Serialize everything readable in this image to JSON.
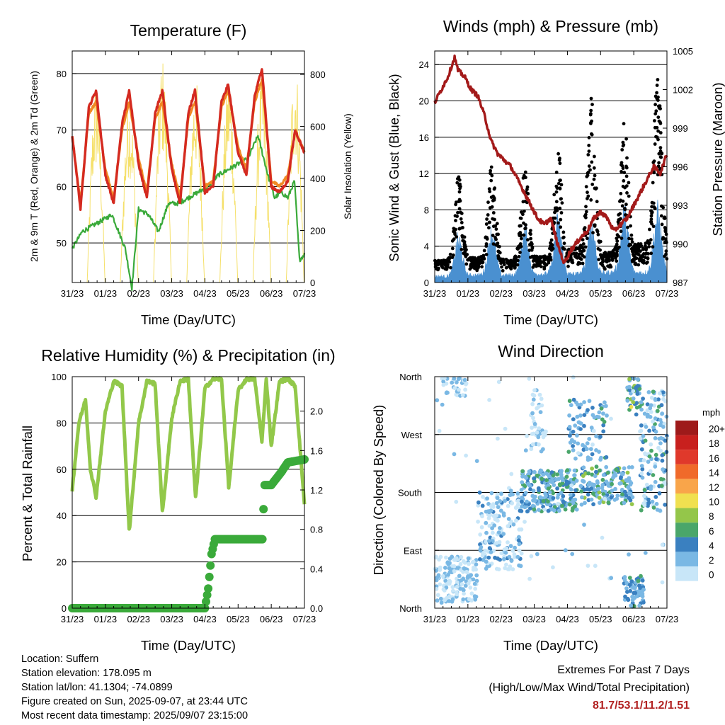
{
  "colors": {
    "temp_red": "#d42a20",
    "temp_orange": "#f08a24",
    "dewpoint_green": "#3aaa3a",
    "insolation_yellow": "#f5e06a",
    "gust_black": "#000000",
    "wind_blue": "#4a90d0",
    "pressure_maroon": "#a31a1a",
    "rh_light_green": "#92c84a",
    "precip_green": "#3aaa3a",
    "extremes_red": "#b22222"
  },
  "info": {
    "location": "Location: Suffern",
    "elevation": "Station elevation: 178.095 m",
    "latlon": "Station lat/lon: 41.1304; -74.0899",
    "created": "Figure created on Sun, 2025-09-07, at 23:44 UTC",
    "latest": "Most recent data timestamp: 2025/09/07 23:15:00"
  },
  "extremes": {
    "title": "Extremes For Past 7 Days",
    "subtitle": "(High/Low/Max Wind/Total Precipitation)",
    "values": "81.7/53.1/11.2/1.51"
  },
  "chart_data": [
    {
      "type": "line",
      "title": "Temperature (F)",
      "xlabel": "Time (Day/UTC)",
      "ylabel": "2m & 9m T (Red, Orange) & 2m Td (Green)",
      "y2label": "Solar Insolation (Yellow)",
      "x_ticks": [
        "31/23",
        "01/23",
        "02/23",
        "03/23",
        "04/23",
        "05/23",
        "06/23",
        "07/23"
      ],
      "y_ticks": [
        50,
        60,
        70,
        80
      ],
      "y2_ticks": [
        0,
        200,
        400,
        600,
        800
      ],
      "ylim": [
        43,
        84
      ],
      "y2lim": [
        0,
        890
      ],
      "grid": true,
      "series": [
        {
          "name": "2m T",
          "color": "red",
          "x": [
            0,
            0.1,
            0.25,
            0.5,
            0.72,
            1.0,
            1.25,
            1.5,
            1.72,
            2.0,
            2.25,
            2.5,
            2.72,
            3.0,
            3.25,
            3.5,
            3.7,
            4.0,
            4.25,
            4.5,
            4.7,
            5.0,
            5.25,
            5.5,
            5.72,
            6.0,
            6.25,
            6.5,
            6.72,
            7.0
          ],
          "y": [
            69,
            64,
            56,
            74,
            77,
            62,
            57,
            71,
            77,
            64,
            58,
            73,
            77,
            63,
            57,
            73,
            77,
            59,
            60,
            75,
            78,
            66,
            62,
            76,
            81,
            60,
            59,
            61,
            70,
            66
          ]
        },
        {
          "name": "9m T",
          "color": "orange",
          "x": [
            0,
            0.25,
            0.5,
            0.72,
            1.0,
            1.25,
            1.5,
            1.72,
            2.0,
            2.25,
            2.5,
            2.72,
            3.0,
            3.25,
            3.5,
            3.7,
            4.0,
            4.25,
            4.5,
            4.7,
            5.0,
            5.25,
            5.5,
            5.72,
            6.0,
            6.25,
            6.5,
            6.72,
            7.0
          ],
          "y": [
            69,
            57,
            73,
            75,
            63,
            58,
            70,
            75,
            65,
            59,
            72,
            75,
            64,
            58,
            72,
            75,
            60,
            61,
            74,
            77,
            67,
            63,
            75,
            79,
            61,
            60,
            62,
            70,
            66
          ]
        },
        {
          "name": "2m Td",
          "color": "green",
          "x": [
            0,
            0.3,
            0.6,
            0.9,
            1.2,
            1.4,
            1.6,
            1.8,
            2.0,
            2.3,
            2.6,
            2.9,
            3.2,
            3.5,
            3.8,
            4.1,
            4.4,
            4.7,
            5.0,
            5.3,
            5.6,
            5.9,
            6.1,
            6.3,
            6.5,
            6.7,
            6.85,
            7.0
          ],
          "y": [
            49,
            52,
            53,
            54,
            55,
            52,
            49,
            42,
            56,
            55,
            52,
            57,
            57,
            58,
            59,
            60,
            62,
            63,
            64,
            65,
            69,
            62,
            58,
            59,
            58,
            61,
            47,
            48
          ]
        },
        {
          "name": "Solar Insolation",
          "axis": "y2",
          "color": "yellow",
          "days": [
            0,
            1,
            2,
            3,
            4,
            5,
            6
          ],
          "peak": [
            770,
            730,
            870,
            790,
            800,
            810,
            860
          ],
          "x_peak_offset": 0.72
        }
      ]
    },
    {
      "type": "scatter",
      "title": "Winds (mph) & Pressure (mb)",
      "xlabel": "Time (Day/UTC)",
      "ylabel": "Sonic Wind & Gust (Blue, Black)",
      "y2label": "Station Pressure (Maroon)",
      "x_ticks": [
        "31/23",
        "01/23",
        "02/23",
        "03/23",
        "04/23",
        "05/23",
        "06/23",
        "07/23"
      ],
      "y_ticks": [
        0,
        4,
        8,
        12,
        16,
        20,
        24
      ],
      "y2_ticks": [
        987,
        990,
        993,
        996,
        999,
        1002,
        1005
      ],
      "ylim": [
        0,
        25.5
      ],
      "y2lim": [
        987,
        1005
      ],
      "grid": true,
      "series": [
        {
          "name": "Gust",
          "color": "black",
          "daily_gust_peak": [
            11,
            13,
            12,
            14,
            20,
            17,
            23
          ],
          "peak_offset": 0.72
        },
        {
          "name": "Wind",
          "color": "blue",
          "daily_wind_peak": [
            5,
            6,
            6,
            7,
            7,
            8,
            8
          ],
          "peak_offset": 0.72
        },
        {
          "name": "Pressure",
          "axis": "y2",
          "color": "maroon",
          "x": [
            0,
            0.2,
            0.4,
            0.6,
            0.7,
            0.9,
            1.1,
            1.3,
            1.5,
            1.7,
            1.9,
            2.1,
            2.3,
            2.5,
            2.7,
            2.9,
            3.1,
            3.3,
            3.5,
            3.7,
            3.9,
            4.1,
            4.25,
            4.4,
            4.6,
            4.8,
            5.0,
            5.2,
            5.4,
            5.6,
            5.8,
            6.0,
            6.2,
            6.4,
            6.6,
            6.8,
            7.0
          ],
          "y": [
            1001,
            1002,
            1003,
            1004.5,
            1003.5,
            1003,
            1002,
            1001.5,
            1000,
            998,
            997,
            996.5,
            996,
            995,
            994,
            993,
            992,
            991.5,
            992,
            990,
            988.5,
            989.5,
            990,
            990.5,
            991,
            992,
            992.5,
            992,
            991,
            991.5,
            992,
            993,
            994,
            995,
            996,
            995.5,
            997
          ]
        }
      ]
    },
    {
      "type": "line",
      "title": "Relative Humidity (%) & Precipitation (in)",
      "xlabel": "Time (Day/UTC)",
      "ylabel": "Percent & Total Rainfall",
      "x_ticks": [
        "31/23",
        "01/23",
        "02/23",
        "03/23",
        "04/23",
        "05/23",
        "06/23",
        "07/23"
      ],
      "y_ticks": [
        0,
        20,
        40,
        60,
        80,
        100
      ],
      "y2_ticks": [
        "0.0",
        "0.4",
        "0.8",
        "1.2",
        "1.6",
        "2.0"
      ],
      "ylim": [
        0,
        100
      ],
      "y2lim": [
        0,
        2.35
      ],
      "grid": true,
      "series": [
        {
          "name": "RH",
          "color": "light green",
          "x": [
            0,
            0.2,
            0.4,
            0.55,
            0.72,
            1.0,
            1.25,
            1.5,
            1.72,
            2.0,
            2.25,
            2.5,
            2.72,
            3.0,
            3.25,
            3.5,
            3.72,
            4.0,
            4.25,
            4.5,
            4.72,
            5.0,
            5.25,
            5.5,
            5.72,
            5.85,
            6.0,
            6.25,
            6.5,
            6.72,
            7.0
          ],
          "y": [
            51,
            80,
            90,
            60,
            48,
            85,
            98,
            96,
            33,
            80,
            98,
            97,
            41,
            82,
            98,
            99,
            47,
            95,
            99,
            99,
            52,
            94,
            99,
            99,
            72,
            99,
            70,
            98,
            99,
            96,
            45
          ]
        },
        {
          "name": "Total Rainfall",
          "axis": "y2",
          "color": "green",
          "x": [
            0,
            4.0,
            4.1,
            4.2,
            4.3,
            5.75,
            5.78,
            6.0,
            6.3,
            6.5,
            7.0
          ],
          "y": [
            0.0,
            0.0,
            0.2,
            0.55,
            0.7,
            0.7,
            1.25,
            1.25,
            1.38,
            1.48,
            1.51
          ]
        }
      ]
    },
    {
      "type": "scatter",
      "title": "Wind Direction",
      "xlabel": "Time (Day/UTC)",
      "ylabel": "Direction (Colored By Speed)",
      "x_ticks": [
        "31/23",
        "01/23",
        "02/23",
        "03/23",
        "04/23",
        "05/23",
        "06/23",
        "07/23"
      ],
      "y_ticks": [
        "North",
        "East",
        "South",
        "West",
        "North"
      ],
      "ylim": [
        0,
        360
      ],
      "legend_title": "mph",
      "legend": [
        "20+",
        "18",
        "16",
        "14",
        "12",
        "10",
        "8",
        "6",
        "4",
        "2",
        "0"
      ],
      "legend_colors": [
        "#9e1a1a",
        "#c8201e",
        "#e0392b",
        "#f06a2a",
        "#f9a54a",
        "#f0e050",
        "#94c64a",
        "#4aa66a",
        "#3a80c0",
        "#7ab8e4",
        "#c8e6f8"
      ],
      "grid": true,
      "legend_position": "right"
    }
  ]
}
